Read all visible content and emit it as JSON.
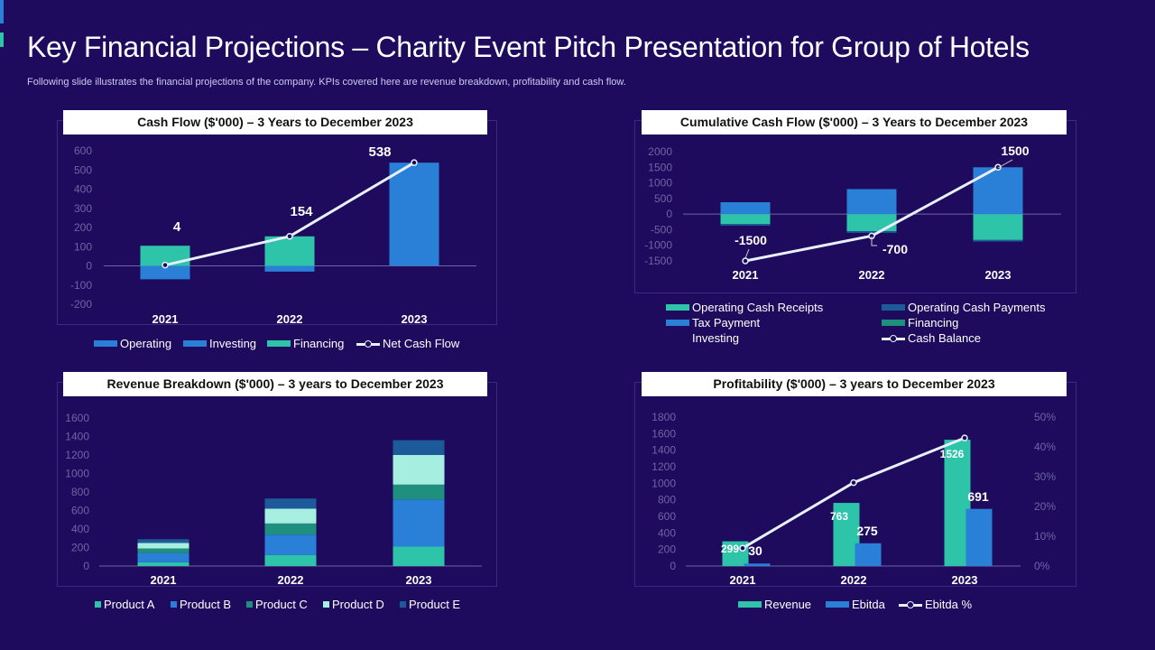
{
  "slide": {
    "title": "Key Financial Projections – Charity Event Pitch Presentation for Group of Hotels",
    "subtitle": "Following slide illustrates the financial projections of the company. KPIs covered here are revenue breakdown, profitability and cash flow."
  },
  "colors": {
    "background": "#1e0b5e",
    "blue": "#2a7fd6",
    "teal": "#2ec4a9",
    "navy": "#1c5a9a",
    "darkteal": "#20907e",
    "light": "#e8f0fb",
    "mint": "#a6efe0",
    "axis": "#6f65a3"
  },
  "chart_data": [
    {
      "type": "bar",
      "title": "Cash Flow ($'000) – 3 Years to December 2023",
      "categories": [
        "2021",
        "2022",
        "2023"
      ],
      "ylim": [
        -200,
        600
      ],
      "yticks": [
        "-200",
        "-100",
        "0",
        "100",
        "200",
        "300",
        "400",
        "500",
        "600"
      ],
      "stacked": true,
      "series": [
        {
          "name": "Operating",
          "values": [
            0,
            0,
            0
          ]
        },
        {
          "name": "Investing",
          "values": [
            -70,
            -30,
            538
          ]
        },
        {
          "name": "Financing",
          "values": [
            105,
            154,
            0
          ]
        },
        {
          "name": "Net Cash Flow",
          "type": "line",
          "values": [
            4,
            154,
            538
          ]
        }
      ],
      "data_labels": [
        "4",
        "154",
        "538"
      ],
      "legend": [
        "Operating",
        "Investing",
        "Financing",
        "Net Cash Flow"
      ]
    },
    {
      "type": "bar",
      "title": "Cumulative Cash Flow ($'000) – 3 Years to December 2023",
      "categories": [
        "2021",
        "2022",
        "2023"
      ],
      "ylim": [
        -1500,
        2000
      ],
      "yticks": [
        "-1500",
        "-1000",
        "-500",
        "0",
        "500",
        "1000",
        "1500",
        "2000"
      ],
      "stacked": true,
      "series": [
        {
          "name": "Operating Cash Receipts",
          "values": [
            -320,
            -550,
            -830
          ]
        },
        {
          "name": "Operating Cash Payments",
          "values": [
            -50,
            -50,
            -50
          ]
        },
        {
          "name": "Tax Payment",
          "values": [
            380,
            800,
            1500
          ]
        },
        {
          "name": "Financing",
          "values": [
            0,
            0,
            0
          ]
        },
        {
          "name": "Investing",
          "values": [
            0,
            0,
            0
          ]
        },
        {
          "name": "Cash Balance",
          "type": "line",
          "values": [
            -1500,
            -700,
            1500
          ]
        }
      ],
      "data_labels": [
        "-1500",
        "-700",
        "1500"
      ],
      "legend": [
        "Operating Cash Receipts",
        "Operating Cash Payments",
        "Tax Payment",
        "Financing",
        "Investing",
        "Cash Balance"
      ]
    },
    {
      "type": "bar",
      "title": "Revenue Breakdown ($'000) – 3 years to December 2023",
      "categories": [
        "2021",
        "2022",
        "2023"
      ],
      "ylim": [
        0,
        1600
      ],
      "yticks": [
        "0",
        "200",
        "400",
        "600",
        "800",
        "1000",
        "1200",
        "1400",
        "1600"
      ],
      "stacked": true,
      "series": [
        {
          "name": "Product A",
          "values": [
            40,
            120,
            210
          ]
        },
        {
          "name": "Product B",
          "values": [
            100,
            220,
            510
          ]
        },
        {
          "name": "Product C",
          "values": [
            50,
            120,
            160
          ]
        },
        {
          "name": "Product D",
          "values": [
            60,
            160,
            320
          ]
        },
        {
          "name": "Product E",
          "values": [
            40,
            110,
            160
          ]
        }
      ],
      "legend": [
        "Product A",
        "Product B",
        "Product C",
        "Product D",
        "Product E"
      ]
    },
    {
      "type": "bar",
      "title": "Profitability ($'000) – 3 years to December 2023",
      "categories": [
        "2021",
        "2022",
        "2023"
      ],
      "ylim": [
        0,
        1800
      ],
      "yticks": [
        "0",
        "200",
        "400",
        "600",
        "800",
        "1000",
        "1200",
        "1400",
        "1600",
        "1800"
      ],
      "y2lim": [
        0,
        50
      ],
      "y2ticks": [
        "0%",
        "10%",
        "20%",
        "30%",
        "40%",
        "50%"
      ],
      "series": [
        {
          "name": "Revenue",
          "values": [
            299,
            763,
            1526
          ]
        },
        {
          "name": "Ebitda",
          "values": [
            30,
            275,
            691
          ]
        },
        {
          "name": "Ebitda %",
          "type": "line",
          "axis": "secondary",
          "values": [
            6,
            28,
            43
          ]
        }
      ],
      "legend": [
        "Revenue",
        "Ebitda",
        "Ebitda %"
      ]
    }
  ]
}
